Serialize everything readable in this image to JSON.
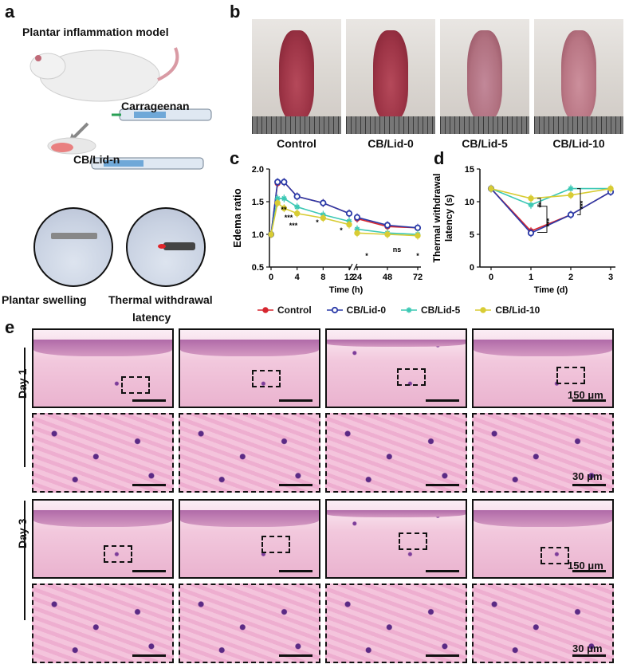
{
  "panels": {
    "a": "a",
    "b": "b",
    "c": "c",
    "d": "d",
    "e": "e"
  },
  "panel_a": {
    "title": "Plantar inflammation model",
    "carrageenan": "Carrageenan",
    "cblid": "CB/Lid-n",
    "swelling": "Plantar swelling",
    "thermal_line1": "Thermal withdrawal",
    "thermal_line2": "latency"
  },
  "panel_b": {
    "labels": [
      "Control",
      "CB/Lid-0",
      "CB/Lid-5",
      "CB/Lid-10"
    ]
  },
  "colors": {
    "Control": "#d6262f",
    "CB/Lid-0": "#2a3aa8",
    "CB/Lid-5": "#3cc8b4",
    "CB/Lid-10": "#d8cc34"
  },
  "legend": [
    "Control",
    "CB/Lid-0",
    "CB/Lid-5",
    "CB/Lid-10"
  ],
  "chart_data": [
    {
      "type": "line",
      "panel": "c",
      "xlabel": "Time (h)",
      "ylabel": "Edema ratio",
      "ylim": [
        0.5,
        2.0
      ],
      "yticks": [
        "0.5",
        "1.0",
        "1.5",
        "2.0"
      ],
      "xticks": [
        "0",
        "4",
        "8",
        "12",
        "24",
        "48",
        "72"
      ],
      "x": [
        0,
        1,
        2,
        4,
        8,
        12,
        24,
        48,
        72
      ],
      "series": [
        {
          "name": "Control",
          "values": [
            1.0,
            1.78,
            1.8,
            1.58,
            1.48,
            1.32,
            1.24,
            1.12,
            1.1
          ]
        },
        {
          "name": "CB/Lid-0",
          "values": [
            1.0,
            1.8,
            1.8,
            1.58,
            1.48,
            1.32,
            1.26,
            1.14,
            1.1
          ]
        },
        {
          "name": "CB/Lid-5",
          "values": [
            1.0,
            1.55,
            1.55,
            1.42,
            1.3,
            1.2,
            1.08,
            1.02,
            1.0
          ]
        },
        {
          "name": "CB/Lid-10",
          "values": [
            1.0,
            1.48,
            1.4,
            1.32,
            1.25,
            1.15,
            1.02,
            1.0,
            0.98
          ]
        }
      ],
      "annotations": [
        "**",
        "***",
        "***",
        "*",
        "*",
        "*",
        "ns",
        "*"
      ]
    },
    {
      "type": "line",
      "panel": "d",
      "xlabel": "Time (d)",
      "ylabel": "Thermal withdrawal latency (s)",
      "ylabel_line1": "Thermal withdrawal",
      "ylabel_line2": "latency (s)",
      "ylim": [
        0,
        15
      ],
      "yticks": [
        "0",
        "5",
        "10",
        "15"
      ],
      "xticks": [
        "0",
        "1",
        "2",
        "3"
      ],
      "x": [
        0,
        1,
        2,
        3
      ],
      "series": [
        {
          "name": "Control",
          "values": [
            12.0,
            5.5,
            8.0,
            11.5
          ]
        },
        {
          "name": "CB/Lid-0",
          "values": [
            12.0,
            5.2,
            8.0,
            11.5
          ]
        },
        {
          "name": "CB/Lid-5",
          "values": [
            12.0,
            9.5,
            12.0,
            12.0
          ]
        },
        {
          "name": "CB/Lid-10",
          "values": [
            12.0,
            10.5,
            11.0,
            12.0
          ]
        }
      ],
      "annotations": [
        "**",
        "***",
        "***"
      ]
    }
  ],
  "panel_e": {
    "day1": "Day 1",
    "day3": "Day 3",
    "scale_low": "150 μm",
    "scale_high": "30 μm"
  }
}
